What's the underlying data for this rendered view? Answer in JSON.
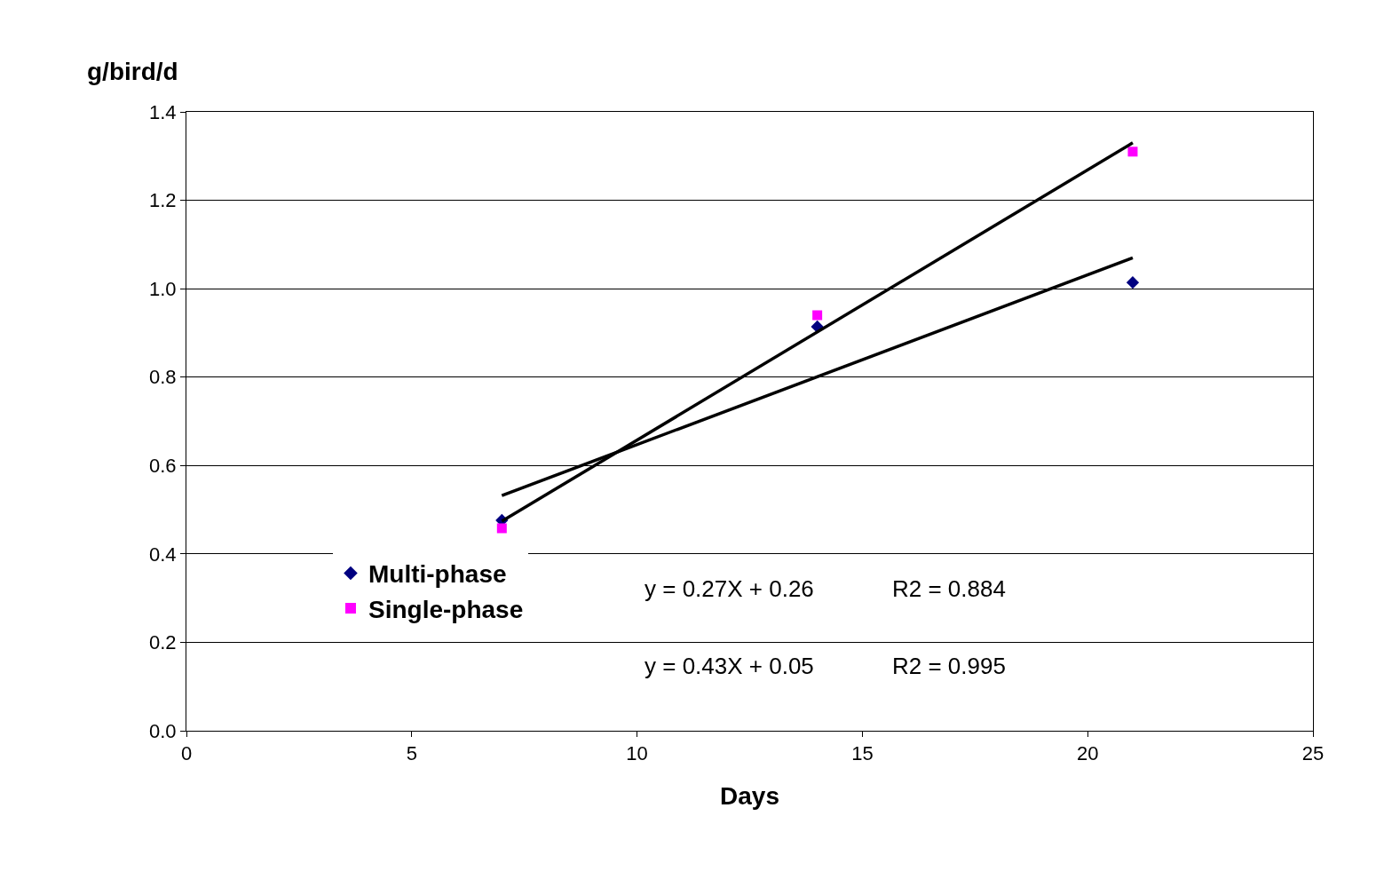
{
  "chart_data": {
    "type": "scatter",
    "ylabel": "g/bird/d",
    "xlabel": "Days",
    "xlim": [
      0,
      25
    ],
    "xticks": [
      0,
      5,
      10,
      15,
      20,
      25
    ],
    "ylim": [
      0,
      1.4
    ],
    "yticks": [
      {
        "value": 0,
        "label": "0.0"
      },
      {
        "value": 0.2,
        "label": "0.2"
      },
      {
        "value": 0.4,
        "label": "0.4"
      },
      {
        "value": 0.6,
        "label": "0.6"
      },
      {
        "value": 0.8,
        "label": "0.8"
      },
      {
        "value": 1,
        "label": "1.0"
      },
      {
        "value": 1.2,
        "label": "1.2"
      },
      {
        "value": 1.4,
        "label": "1.4"
      }
    ],
    "grid": "y",
    "legend": "bottom left",
    "series": [
      {
        "name": "Multi-phase",
        "color": "#000080",
        "marker": "diamond",
        "x": [
          7,
          14,
          21
        ],
        "values": [
          0.476,
          0.914,
          1.014
        ]
      },
      {
        "name": "Single-phase",
        "color": "#ff00ff",
        "marker": "square",
        "x": [
          7,
          14,
          21
        ],
        "values": [
          0.458,
          0.94,
          1.31
        ]
      },
      {
        "type": "line",
        "color": "#000000",
        "line_style": "solid",
        "x": [
          7,
          21
        ],
        "values": [
          0.532,
          1.07
        ]
      },
      {
        "type": "line",
        "color": "#000000",
        "line_style": "solid",
        "x": [
          7,
          21
        ],
        "values": [
          0.474,
          1.33
        ]
      }
    ],
    "annotations": [
      "y = 0.27X + 0.26",
      "R2 = 0.884",
      "y = 0.43X + 0.05",
      "R2 = 0.995"
    ]
  }
}
